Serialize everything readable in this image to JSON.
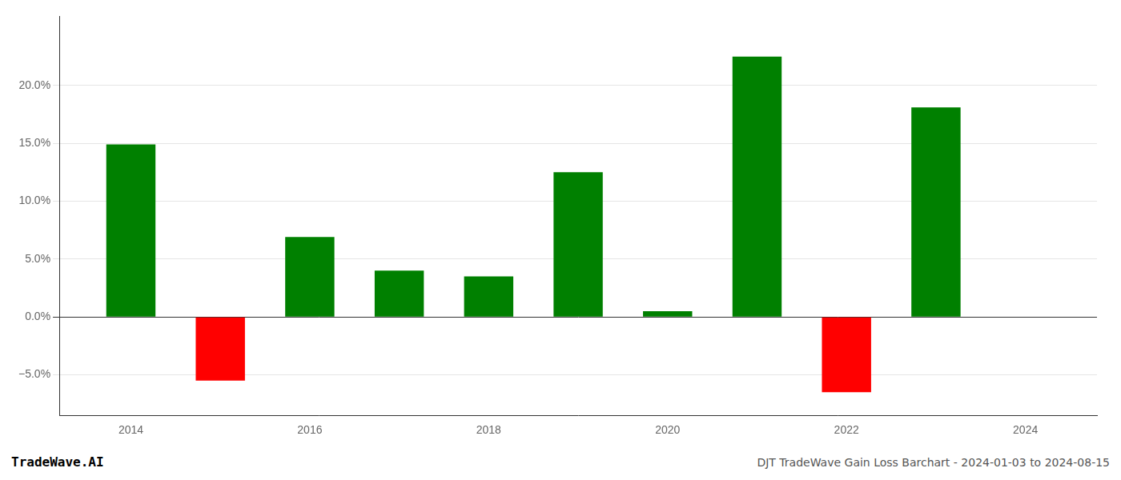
{
  "chart_data": {
    "type": "bar",
    "title": "DJT TradeWave Gain Loss Barchart - 2024-01-03 to 2024-08-15",
    "annotations": [
      "TradeWave.AI"
    ],
    "x": [
      2014,
      2015,
      2016,
      2017,
      2018,
      2019,
      2020,
      2021,
      2022,
      2023
    ],
    "values": [
      14.9,
      -5.5,
      6.9,
      4.0,
      3.5,
      12.5,
      0.5,
      22.5,
      -6.5,
      18.1
    ],
    "colors": [
      "#008000",
      "#ff0000",
      "#008000",
      "#008000",
      "#008000",
      "#008000",
      "#008000",
      "#008000",
      "#ff0000",
      "#008000"
    ],
    "xlim": [
      2013.2,
      2024.8
    ],
    "xticks": [
      2014,
      2016,
      2018,
      2020,
      2022,
      2024
    ],
    "ylim": [
      -8.5,
      26
    ],
    "yticks": [
      {
        "value": -5.0,
        "label": "−5.0%"
      },
      {
        "value": 0.0,
        "label": "0.0%"
      },
      {
        "value": 5.0,
        "label": "5.0%"
      },
      {
        "value": 10.0,
        "label": "10.0%"
      },
      {
        "value": 15.0,
        "label": "15.0%"
      },
      {
        "value": 20.0,
        "label": "20.0%"
      }
    ],
    "grid": true
  }
}
